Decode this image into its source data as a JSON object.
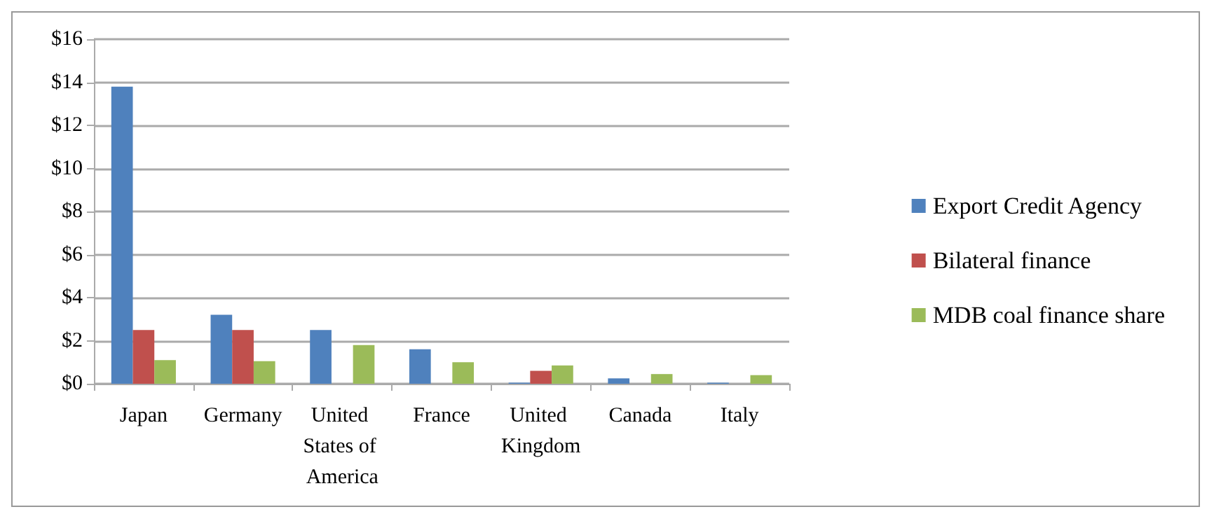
{
  "chart_data": {
    "type": "bar",
    "categories": [
      "Japan",
      "Germany",
      "United States of America",
      "France",
      "United Kingdom",
      "Canada",
      "Italy"
    ],
    "series": [
      {
        "name": "Export Credit Agency",
        "color": "#4f81bd",
        "values": [
          13.8,
          3.2,
          2.5,
          1.6,
          0.05,
          0.25,
          0.05
        ]
      },
      {
        "name": "Bilateral finance",
        "color": "#c0504d",
        "values": [
          2.5,
          2.5,
          null,
          null,
          0.6,
          null,
          null
        ]
      },
      {
        "name": "MDB coal finance share",
        "color": "#9bbb59",
        "values": [
          1.1,
          1.05,
          1.8,
          1.0,
          0.85,
          0.45,
          0.4
        ]
      }
    ],
    "ylim": [
      0,
      16
    ],
    "yticks": [
      {
        "value": 0,
        "label": "$0"
      },
      {
        "value": 2,
        "label": "$2"
      },
      {
        "value": 4,
        "label": "$4"
      },
      {
        "value": 6,
        "label": "$6"
      },
      {
        "value": 8,
        "label": "$8"
      },
      {
        "value": 10,
        "label": "$10"
      },
      {
        "value": 12,
        "label": "$12"
      },
      {
        "value": 14,
        "label": "$14"
      },
      {
        "value": 16,
        "label": "$16"
      }
    ],
    "grid": "y",
    "legend": "right"
  }
}
